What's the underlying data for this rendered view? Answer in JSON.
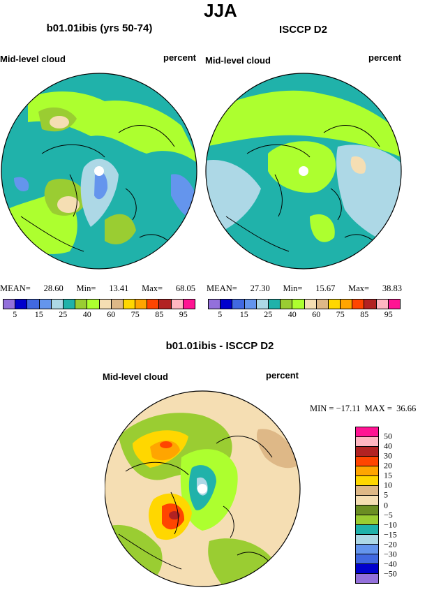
{
  "title": "JJA",
  "panels": [
    {
      "title": "b01.01ibis (yrs 50-74)",
      "left_label": "Mid-level cloud",
      "right_label": "percent",
      "stats": {
        "mean_label": "MEAN=",
        "mean": "28.60",
        "min_label": "Min=",
        "min": "13.41",
        "max_label": "Max=",
        "max": "68.05"
      }
    },
    {
      "title": "ISCCP D2",
      "left_label": "Mid-level cloud",
      "right_label": "percent",
      "stats": {
        "mean_label": "MEAN=",
        "mean": "27.30",
        "min_label": "Min=",
        "min": "15.67",
        "max_label": "Max=",
        "max": "38.83"
      }
    },
    {
      "title": "b01.01ibis - ISCCP D2",
      "left_label": "Mid-level cloud",
      "right_label": "percent",
      "stats_text": "MIN = −17.11  MAX =  36.66"
    }
  ],
  "colorbar_top": {
    "colors": [
      "#9370db",
      "#0000cd",
      "#4169e1",
      "#6495ed",
      "#add8e6",
      "#20b2aa",
      "#9acd32",
      "#adff2f",
      "#f5deb3",
      "#deb887",
      "#ffd700",
      "#ffa500",
      "#ff4500",
      "#b22222",
      "#ffb6c1",
      "#ff1493"
    ],
    "tick_labels": [
      "5",
      "15",
      "25",
      "40",
      "60",
      "75",
      "85",
      "95"
    ]
  },
  "colorbar_diff": {
    "colors": [
      "#ff1493",
      "#ffb6c1",
      "#b22222",
      "#ff4500",
      "#ffa500",
      "#ffd700",
      "#deb887",
      "#f5deb3",
      "#6b8e23",
      "#9acd32",
      "#20b2aa",
      "#add8e6",
      "#6495ed",
      "#4169e1",
      "#0000cd",
      "#9370db"
    ],
    "tick_labels": [
      "50",
      "40",
      "30",
      "20",
      "15",
      "10",
      "5",
      "0",
      "−5",
      "−10",
      "−15",
      "−20",
      "−30",
      "−40",
      "−50"
    ]
  },
  "chart_data": [
    {
      "type": "heatmap",
      "title": "b01.01ibis (yrs 50-74)",
      "projection": "north polar stereographic",
      "variable": "Mid-level cloud",
      "units": "percent",
      "mean": 28.6,
      "min": 13.41,
      "max": 68.05,
      "levels": [
        5,
        10,
        15,
        20,
        25,
        30,
        40,
        50,
        60,
        65,
        75,
        80,
        85,
        90,
        95
      ]
    },
    {
      "type": "heatmap",
      "title": "ISCCP D2",
      "projection": "north polar stereographic",
      "variable": "Mid-level cloud",
      "units": "percent",
      "mean": 27.3,
      "min": 15.67,
      "max": 38.83,
      "levels": [
        5,
        10,
        15,
        20,
        25,
        30,
        40,
        50,
        60,
        65,
        75,
        80,
        85,
        90,
        95
      ]
    },
    {
      "type": "heatmap",
      "title": "b01.01ibis - ISCCP D2",
      "projection": "north polar stereographic",
      "variable": "Mid-level cloud",
      "units": "percent",
      "min": -17.11,
      "max": 36.66,
      "levels": [
        50,
        40,
        30,
        20,
        15,
        10,
        5,
        0,
        -5,
        -10,
        -15,
        -20,
        -30,
        -40,
        -50
      ]
    }
  ]
}
